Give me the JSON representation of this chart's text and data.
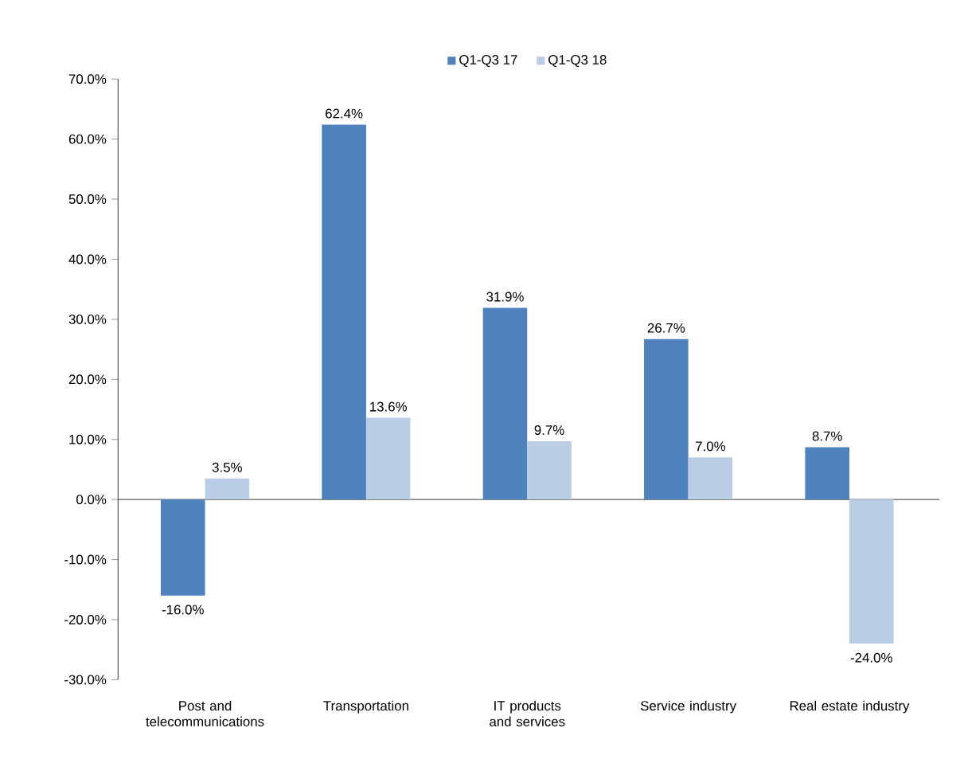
{
  "chart_data": {
    "type": "bar",
    "categories": [
      "Post and telecommunications",
      "Transportation",
      "IT products and services",
      "Service industry",
      "Real estate  industry"
    ],
    "series": [
      {
        "name": "Q1-Q3 17",
        "color": "#4f81bd",
        "values": [
          -16.0,
          62.4,
          31.9,
          26.7,
          8.7
        ],
        "value_labels": [
          "-16.0%",
          "62.4%",
          "31.9%",
          "26.7%",
          "8.7%"
        ]
      },
      {
        "name": "Q1-Q3 18",
        "color": "#b9cde5",
        "values": [
          3.5,
          13.6,
          9.7,
          7.0,
          -24.0
        ],
        "value_labels": [
          "3.5%",
          "13.6%",
          "9.7%",
          "7.0%",
          "-24.0%"
        ]
      }
    ],
    "ylim": [
      -30,
      70
    ],
    "yticks": [
      {
        "value": -30,
        "label": "-30.0%"
      },
      {
        "value": -20,
        "label": "-20.0%"
      },
      {
        "value": -10,
        "label": "-10.0%"
      },
      {
        "value": 0,
        "label": "0.0%"
      },
      {
        "value": 10,
        "label": "10.0%"
      },
      {
        "value": 20,
        "label": "20.0%"
      },
      {
        "value": 30,
        "label": "30.0%"
      },
      {
        "value": 40,
        "label": "40.0%"
      },
      {
        "value": 50,
        "label": "50.0%"
      },
      {
        "value": 60,
        "label": "60.0%"
      },
      {
        "value": 70,
        "label": "70.0%"
      }
    ],
    "legend": "top"
  }
}
